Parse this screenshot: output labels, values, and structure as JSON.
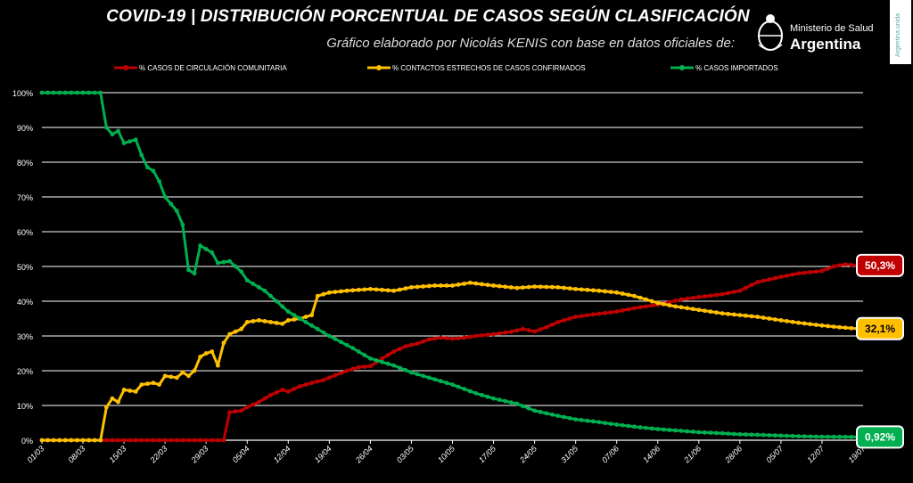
{
  "title": "COVID-19  |  DISTRIBUCIÓN PORCENTUAL DE CASOS SEGÚN CLASIFICACIÓN",
  "subtitle": "Gráfico elaborado por Nicolás KENIS con base en datos oficiales de:",
  "logo": {
    "line1": "Ministerio de Salud",
    "line2": "Argentina",
    "icon": "argentina-coat-of-arms-icon"
  },
  "brand_tag": "Argentina unida",
  "colors": {
    "background": "#000000",
    "grid": "#ffffff",
    "community": "#c00000",
    "contacts": "#ffc000",
    "imported": "#00b050"
  },
  "chart_data": {
    "type": "line",
    "ylim": [
      0,
      100
    ],
    "yticks": [
      "0%",
      "10%",
      "20%",
      "30%",
      "40%",
      "50%",
      "60%",
      "70%",
      "80%",
      "90%",
      "100%"
    ],
    "x_range": [
      "2020-03-01",
      "2020-07-19"
    ],
    "x_tick_labels": [
      "01/03",
      "08/03",
      "15/03",
      "22/03",
      "29/03",
      "05/04",
      "12/04",
      "19/04",
      "26/04",
      "03/05",
      "10/05",
      "17/05",
      "24/05",
      "31/05",
      "07/06",
      "14/06",
      "21/06",
      "28/06",
      "05/07",
      "12/07",
      "19/07"
    ],
    "grid": "horizontal",
    "legend_placement": "top",
    "series": [
      {
        "name": "% CASOS DE CIRCULACIÓN COMUNITARIA",
        "color": "#c00000",
        "end_label": "50,3%",
        "points": [
          [
            "2020-03-01",
            0
          ],
          [
            "2020-03-08",
            0
          ],
          [
            "2020-03-15",
            0
          ],
          [
            "2020-03-22",
            0
          ],
          [
            "2020-03-29",
            0
          ],
          [
            "2020-04-01",
            0
          ],
          [
            "2020-04-02",
            8
          ],
          [
            "2020-04-03",
            8.3
          ],
          [
            "2020-04-04",
            8.5
          ],
          [
            "2020-04-05",
            9.5
          ],
          [
            "2020-04-07",
            11
          ],
          [
            "2020-04-09",
            13
          ],
          [
            "2020-04-11",
            14.5
          ],
          [
            "2020-04-12",
            14
          ],
          [
            "2020-04-14",
            15.5
          ],
          [
            "2020-04-16",
            16.5
          ],
          [
            "2020-04-18",
            17.3
          ],
          [
            "2020-04-19",
            18
          ],
          [
            "2020-04-22",
            20
          ],
          [
            "2020-04-24",
            21
          ],
          [
            "2020-04-26",
            21.3
          ],
          [
            "2020-04-28",
            23.5
          ],
          [
            "2020-04-30",
            25.5
          ],
          [
            "2020-05-02",
            27
          ],
          [
            "2020-05-04",
            27.8
          ],
          [
            "2020-05-06",
            29
          ],
          [
            "2020-05-08",
            29.5
          ],
          [
            "2020-05-10",
            29.2
          ],
          [
            "2020-05-12",
            29.5
          ],
          [
            "2020-05-14",
            30
          ],
          [
            "2020-05-17",
            30.5
          ],
          [
            "2020-05-20",
            31.2
          ],
          [
            "2020-05-22",
            32
          ],
          [
            "2020-05-24",
            31.3
          ],
          [
            "2020-05-26",
            32.5
          ],
          [
            "2020-05-28",
            34
          ],
          [
            "2020-05-31",
            35.5
          ],
          [
            "2020-06-03",
            36.2
          ],
          [
            "2020-06-07",
            37
          ],
          [
            "2020-06-10",
            38
          ],
          [
            "2020-06-14",
            39
          ],
          [
            "2020-06-18",
            40.5
          ],
          [
            "2020-06-21",
            41.2
          ],
          [
            "2020-06-25",
            42
          ],
          [
            "2020-06-28",
            43
          ],
          [
            "2020-07-01",
            45.5
          ],
          [
            "2020-07-05",
            47
          ],
          [
            "2020-07-08",
            48
          ],
          [
            "2020-07-12",
            48.7
          ],
          [
            "2020-07-14",
            50
          ],
          [
            "2020-07-16",
            50.6
          ],
          [
            "2020-07-18",
            50.3
          ]
        ]
      },
      {
        "name": "% CONTACTOS ESTRECHOS DE CASOS CONFIRMADOS",
        "color": "#ffc000",
        "end_label": "32,1%",
        "points": [
          [
            "2020-03-01",
            0
          ],
          [
            "2020-03-08",
            0
          ],
          [
            "2020-03-11",
            0
          ],
          [
            "2020-03-12",
            9.5
          ],
          [
            "2020-03-13",
            12
          ],
          [
            "2020-03-14",
            11
          ],
          [
            "2020-03-15",
            14.5
          ],
          [
            "2020-03-17",
            14
          ],
          [
            "2020-03-18",
            16
          ],
          [
            "2020-03-20",
            16.5
          ],
          [
            "2020-03-21",
            16
          ],
          [
            "2020-03-22",
            18.5
          ],
          [
            "2020-03-24",
            18
          ],
          [
            "2020-03-25",
            19.5
          ],
          [
            "2020-03-26",
            18.5
          ],
          [
            "2020-03-27",
            20
          ],
          [
            "2020-03-28",
            24
          ],
          [
            "2020-03-29",
            25
          ],
          [
            "2020-03-30",
            25.5
          ],
          [
            "2020-03-31",
            21.5
          ],
          [
            "2020-04-01",
            28
          ],
          [
            "2020-04-02",
            30.5
          ],
          [
            "2020-04-04",
            32
          ],
          [
            "2020-04-05",
            34
          ],
          [
            "2020-04-07",
            34.5
          ],
          [
            "2020-04-09",
            34
          ],
          [
            "2020-04-11",
            33.5
          ],
          [
            "2020-04-12",
            34.5
          ],
          [
            "2020-04-14",
            35
          ],
          [
            "2020-04-16",
            36
          ],
          [
            "2020-04-17",
            41.5
          ],
          [
            "2020-04-19",
            42.5
          ],
          [
            "2020-04-22",
            43
          ],
          [
            "2020-04-26",
            43.5
          ],
          [
            "2020-04-30",
            43
          ],
          [
            "2020-05-03",
            44
          ],
          [
            "2020-05-07",
            44.5
          ],
          [
            "2020-05-10",
            44.5
          ],
          [
            "2020-05-13",
            45.3
          ],
          [
            "2020-05-17",
            44.5
          ],
          [
            "2020-05-21",
            43.8
          ],
          [
            "2020-05-24",
            44.2
          ],
          [
            "2020-05-28",
            44
          ],
          [
            "2020-05-31",
            43.5
          ],
          [
            "2020-06-04",
            43
          ],
          [
            "2020-06-07",
            42.5
          ],
          [
            "2020-06-10",
            41.5
          ],
          [
            "2020-06-14",
            39.5
          ],
          [
            "2020-06-17",
            38.5
          ],
          [
            "2020-06-21",
            37.5
          ],
          [
            "2020-06-25",
            36.5
          ],
          [
            "2020-06-28",
            36
          ],
          [
            "2020-07-01",
            35.5
          ],
          [
            "2020-07-05",
            34.5
          ],
          [
            "2020-07-08",
            33.8
          ],
          [
            "2020-07-12",
            33
          ],
          [
            "2020-07-15",
            32.5
          ],
          [
            "2020-07-18",
            32.1
          ]
        ]
      },
      {
        "name": "% CASOS IMPORTADOS",
        "color": "#00b050",
        "end_label": "0,92%",
        "points": [
          [
            "2020-03-01",
            100
          ],
          [
            "2020-03-08",
            100
          ],
          [
            "2020-03-11",
            100
          ],
          [
            "2020-03-12",
            90
          ],
          [
            "2020-03-13",
            88
          ],
          [
            "2020-03-14",
            89
          ],
          [
            "2020-03-15",
            85.5
          ],
          [
            "2020-03-17",
            86.5
          ],
          [
            "2020-03-18",
            82
          ],
          [
            "2020-03-19",
            78.5
          ],
          [
            "2020-03-20",
            77.5
          ],
          [
            "2020-03-21",
            74.5
          ],
          [
            "2020-03-22",
            70
          ],
          [
            "2020-03-24",
            66
          ],
          [
            "2020-03-25",
            62
          ],
          [
            "2020-03-26",
            49
          ],
          [
            "2020-03-27",
            48
          ],
          [
            "2020-03-28",
            56
          ],
          [
            "2020-03-29",
            55
          ],
          [
            "2020-03-30",
            54
          ],
          [
            "2020-03-31",
            51
          ],
          [
            "2020-04-02",
            51.5
          ],
          [
            "2020-04-04",
            48.5
          ],
          [
            "2020-04-05",
            46
          ],
          [
            "2020-04-08",
            43
          ],
          [
            "2020-04-12",
            37
          ],
          [
            "2020-04-16",
            33
          ],
          [
            "2020-04-19",
            30
          ],
          [
            "2020-04-23",
            26.5
          ],
          [
            "2020-04-26",
            23.5
          ],
          [
            "2020-04-30",
            21.5
          ],
          [
            "2020-05-03",
            19.5
          ],
          [
            "2020-05-07",
            17.5
          ],
          [
            "2020-05-10",
            16
          ],
          [
            "2020-05-14",
            13.5
          ],
          [
            "2020-05-17",
            12
          ],
          [
            "2020-05-21",
            10.5
          ],
          [
            "2020-05-24",
            8.5
          ],
          [
            "2020-05-28",
            7
          ],
          [
            "2020-05-31",
            6
          ],
          [
            "2020-06-04",
            5.2
          ],
          [
            "2020-06-07",
            4.5
          ],
          [
            "2020-06-11",
            3.7
          ],
          [
            "2020-06-14",
            3.2
          ],
          [
            "2020-06-18",
            2.7
          ],
          [
            "2020-06-21",
            2.3
          ],
          [
            "2020-06-25",
            2
          ],
          [
            "2020-06-28",
            1.7
          ],
          [
            "2020-07-02",
            1.5
          ],
          [
            "2020-07-05",
            1.3
          ],
          [
            "2020-07-09",
            1.1
          ],
          [
            "2020-07-12",
            1
          ],
          [
            "2020-07-18",
            0.92
          ]
        ]
      }
    ]
  }
}
